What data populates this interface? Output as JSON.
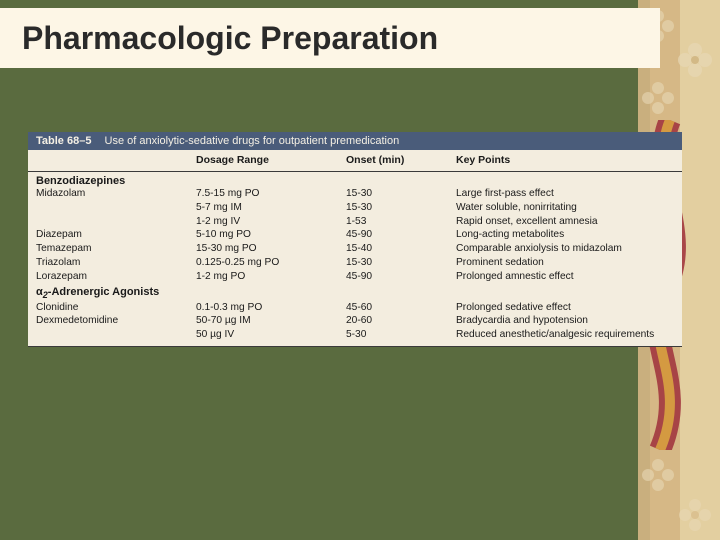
{
  "slide": {
    "title": "Pharmacologic Preparation",
    "background_color": "#5a6b3f",
    "title_band_color": "#fdf6e6"
  },
  "table": {
    "number": "Table 68–5",
    "caption": "Use of anxiolytic-sedative drugs for outpatient premedication",
    "header_bg": "#4a5c7a",
    "card_bg": "#f3eddf",
    "columns": [
      "",
      "Dosage Range",
      "Onset (min)",
      "Key Points"
    ],
    "sections": [
      {
        "heading": "Benzodiazepines",
        "rows": [
          {
            "name": "Midazolam",
            "dose": "7.5-15 mg PO",
            "onset": "15-30",
            "key": "Large first-pass effect"
          },
          {
            "name": "",
            "dose": "5-7 mg IM",
            "onset": "15-30",
            "key": "Water soluble, nonirritating"
          },
          {
            "name": "",
            "dose": "1-2 mg IV",
            "onset": "1-53",
            "key": "Rapid onset, excellent amnesia"
          },
          {
            "name": "Diazepam",
            "dose": "5-10 mg PO",
            "onset": "45-90",
            "key": "Long-acting metabolites"
          },
          {
            "name": "Temazepam",
            "dose": "15-30 mg PO",
            "onset": "15-40",
            "key": "Comparable anxiolysis to midazolam"
          },
          {
            "name": "Triazolam",
            "dose": "0.125-0.25 mg PO",
            "onset": "15-30",
            "key": "Prominent sedation"
          },
          {
            "name": "Lorazepam",
            "dose": "1-2 mg PO",
            "onset": "45-90",
            "key": "Prolonged amnestic effect"
          }
        ]
      },
      {
        "heading_html": "α2-Adrenergic Agonists",
        "heading": "α2-Adrenergic Agonists",
        "rows": [
          {
            "name": "Clonidine",
            "dose": "0.1-0.3 mg PO",
            "onset": "45-60",
            "key": "Prolonged sedative effect"
          },
          {
            "name": "Dexmedetomidine",
            "dose": "50-70 µg IM",
            "onset": "20-60",
            "key": "Bradycardia and hypotension"
          },
          {
            "name": "",
            "dose": "50 µg IV",
            "onset": "5-30",
            "key": "Reduced anesthetic/analgesic requirements"
          }
        ]
      }
    ]
  }
}
